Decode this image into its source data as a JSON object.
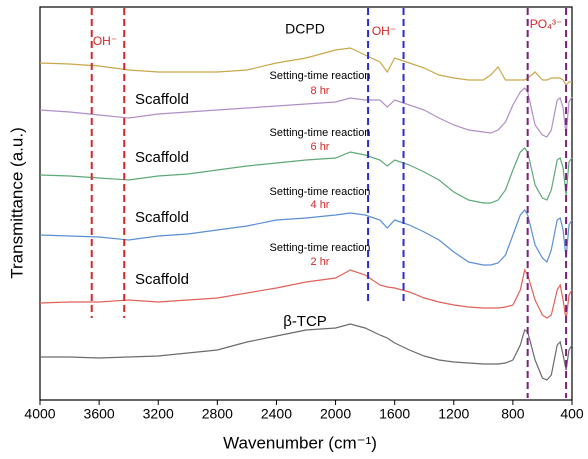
{
  "chart_data": {
    "type": "line",
    "xlabel": "Wavenumber (cm⁻¹)",
    "ylabel": "Transmittance (a.u.)",
    "xlim": [
      4000,
      400
    ],
    "xticks": [
      4000,
      3600,
      3200,
      2800,
      2400,
      2000,
      1600,
      1200,
      800,
      400
    ],
    "ylim": [
      0,
      393
    ],
    "x": [
      4000,
      3800,
      3600,
      3400,
      3200,
      3000,
      2800,
      2600,
      2400,
      2200,
      2000,
      1900,
      1800,
      1700,
      1650,
      1600,
      1500,
      1400,
      1300,
      1200,
      1100,
      1000,
      950,
      900,
      850,
      800,
      750,
      720,
      700,
      650,
      600,
      570,
      540,
      500,
      480,
      460,
      440,
      420,
      400
    ],
    "series": [
      {
        "color": "#c9a84c",
        "values": [
          337,
          336,
          334,
          330,
          328,
          328,
          328,
          330,
          337,
          342,
          350,
          352,
          345,
          338,
          328,
          342,
          337,
          332,
          325,
          322,
          320,
          320,
          325,
          333,
          320,
          320,
          320,
          320,
          322,
          328,
          320,
          320,
          322,
          322,
          322,
          320,
          315,
          318,
          318
        ]
      },
      {
        "color": "#b08fc7",
        "values": [
          290,
          288,
          285,
          282,
          286,
          288,
          290,
          292,
          294,
          296,
          298,
          302,
          300,
          300,
          293,
          300,
          295,
          290,
          282,
          275,
          270,
          268,
          267,
          270,
          278,
          295,
          308,
          312,
          308,
          275,
          265,
          263,
          270,
          300,
          302,
          292,
          265,
          298,
          303
        ]
      },
      {
        "color": "#5fa878",
        "values": [
          225,
          224,
          222,
          220,
          224,
          226,
          230,
          234,
          237,
          240,
          242,
          248,
          245,
          240,
          234,
          240,
          235,
          228,
          220,
          208,
          200,
          197,
          197,
          200,
          210,
          230,
          248,
          252,
          248,
          215,
          202,
          200,
          210,
          240,
          242,
          232,
          205,
          238,
          242
        ]
      },
      {
        "color": "#5b8fd4",
        "values": [
          165,
          164,
          163,
          160,
          164,
          166,
          170,
          174,
          180,
          182,
          185,
          187,
          185,
          180,
          172,
          180,
          175,
          168,
          160,
          148,
          138,
          135,
          135,
          137,
          145,
          165,
          185,
          190,
          185,
          155,
          142,
          138,
          150,
          180,
          182,
          170,
          142,
          175,
          180
        ]
      },
      {
        "color": "#e0625a",
        "values": [
          97,
          98,
          98,
          100,
          98,
          100,
          102,
          107,
          112,
          118,
          122,
          130,
          125,
          115,
          113,
          112,
          108,
          102,
          98,
          95,
          93,
          92,
          92,
          92,
          93,
          95,
          110,
          130,
          125,
          100,
          85,
          82,
          85,
          110,
          115,
          100,
          80,
          105,
          110
        ]
      },
      {
        "color": "#6b6b6b",
        "values": [
          43,
          43,
          42,
          43,
          44,
          47,
          50,
          58,
          64,
          70,
          72,
          76,
          72,
          65,
          62,
          57,
          50,
          44,
          40,
          38,
          37,
          36,
          36,
          36,
          37,
          40,
          55,
          70,
          68,
          40,
          22,
          20,
          25,
          55,
          58,
          45,
          30,
          50,
          55
        ]
      }
    ],
    "ref_lines": [
      {
        "x": 3650,
        "from": 82,
        "color": "#d62728"
      },
      {
        "x": 3430,
        "from": 82,
        "color": "#d62728"
      },
      {
        "x": 1780,
        "from": 97,
        "color": "#2b2bd6"
      },
      {
        "x": 1540,
        "from": 97,
        "color": "#2b2bd6"
      },
      {
        "x": 700,
        "from": 2,
        "color": "#7a1f7a"
      },
      {
        "x": 440,
        "from": 2,
        "color": "#7a1f7a"
      }
    ],
    "annotations": [
      {
        "text": "OH⁻",
        "color": "#d62728"
      },
      {
        "text": "OH⁻",
        "color": "#d62728"
      },
      {
        "text": "PO₄³⁻",
        "color": "#d62728"
      },
      {
        "text": "DCPD",
        "color": "#000000"
      },
      {
        "text": "Setting-time reaction",
        "color": "#000000"
      },
      {
        "text": "8 hr",
        "color": "#d62728"
      },
      {
        "text": "Scaffold",
        "color": "#000000"
      },
      {
        "text": "Setting-time reaction",
        "color": "#000000"
      },
      {
        "text": "6 hr",
        "color": "#d62728"
      },
      {
        "text": "Scaffold",
        "color": "#000000"
      },
      {
        "text": "Setting-time reaction",
        "color": "#000000"
      },
      {
        "text": "4 hr",
        "color": "#d62728"
      },
      {
        "text": "Scaffold",
        "color": "#000000"
      },
      {
        "text": "Setting-time reaction",
        "color": "#000000"
      },
      {
        "text": "2 hr",
        "color": "#d62728"
      },
      {
        "text": "Scaffold",
        "color": "#000000"
      },
      {
        "text": "β-TCP",
        "color": "#000000"
      }
    ]
  }
}
